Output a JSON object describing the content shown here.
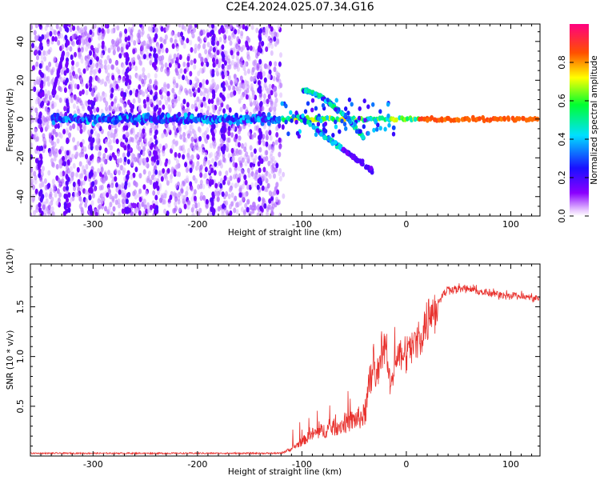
{
  "title": "C2E4.2024.025.07.34.G16",
  "colors": {
    "snr_line": "#e8302c",
    "frame": "#000000",
    "points_bg": "#9b30ff"
  },
  "chart_data": [
    {
      "type": "scatter",
      "name": "spectrogram",
      "xlabel": "Height of straight line (km)",
      "ylabel": "Frequency (Hz)",
      "xlim": [
        -360,
        128
      ],
      "ylim": [
        -50,
        49
      ],
      "x_ticks": [
        -300,
        -200,
        -100,
        0,
        100
      ],
      "y_ticks": [
        -40,
        -20,
        0,
        20,
        40
      ],
      "colorbar": {
        "label": "Normalized spectral amplitude",
        "range": [
          0,
          1
        ],
        "ticks": [
          "0.0",
          "0.2",
          "0.4",
          "0.6",
          "0.8"
        ],
        "colormap": "rainbow (violet to red)"
      },
      "features": {
        "noise_band_x": [
          -360,
          -120
        ],
        "center_band_freq": 0,
        "center_band_amplitude_left": 0.4,
        "center_band_amplitude_right": 0.85,
        "upper_branch": {
          "x": [
            -100,
            -40
          ],
          "y": [
            15,
            -10
          ]
        },
        "lower_branch": {
          "x": [
            -105,
            -32
          ],
          "y": [
            2,
            -27
          ]
        }
      }
    },
    {
      "type": "line",
      "name": "snr",
      "xlabel": "Height of straight line (km)",
      "ylabel": "SNR (10 * v/v)",
      "multiplier": "(x10⁴)",
      "xlim": [
        -360,
        128
      ],
      "ylim": [
        0,
        1.93
      ],
      "x_ticks": [
        -300,
        -200,
        -100,
        0,
        100
      ],
      "y_ticks": [
        "0.5",
        "1.0",
        "1.5"
      ],
      "envelope": {
        "x": [
          -360,
          -120,
          -110,
          -90,
          -60,
          -40,
          -30,
          -25,
          -20,
          -15,
          -10,
          0,
          10,
          20,
          30,
          40,
          60,
          80,
          100,
          128
        ],
        "y": [
          0.02,
          0.02,
          0.05,
          0.15,
          0.22,
          0.28,
          0.7,
          1.0,
          1.1,
          0.7,
          1.0,
          1.05,
          1.15,
          1.35,
          1.55,
          1.68,
          1.68,
          1.63,
          1.62,
          1.58
        ]
      }
    }
  ]
}
